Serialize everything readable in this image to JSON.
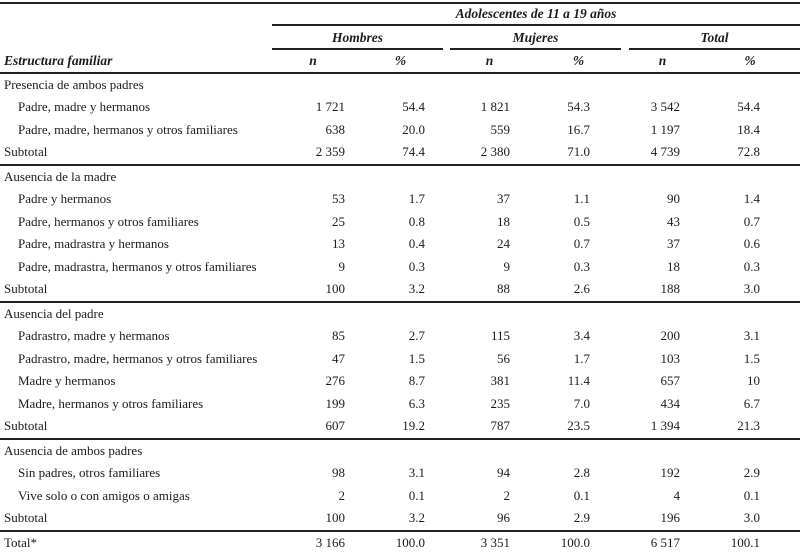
{
  "table": {
    "spanner": "Adolescentes de 11 a 19 años",
    "stub_header": "Estructura familiar",
    "groups": [
      {
        "label": "Hombres"
      },
      {
        "label": "Mujeres"
      },
      {
        "label": "Total"
      }
    ],
    "subcol_n": "n",
    "subcol_pct": "%",
    "column_keys": [
      "n-hombres",
      "pct-hombres",
      "n-mujeres",
      "pct-mujeres",
      "n-total",
      "pct-total"
    ],
    "sections": [
      {
        "header": "Presencia de ambos padres",
        "rows": [
          {
            "label": "Padre, madre y hermanos",
            "values": [
              "1 721",
              "54.4",
              "1 821",
              "54.3",
              "3 542",
              "54.4"
            ]
          },
          {
            "label": "Padre, madre, hermanos y otros familiares",
            "values": [
              "638",
              "20.0",
              "559",
              "16.7",
              "1 197",
              "18.4"
            ]
          }
        ],
        "subtotal": {
          "label": "Subtotal",
          "values": [
            "2 359",
            "74.4",
            "2 380",
            "71.0",
            "4 739",
            "72.8"
          ]
        }
      },
      {
        "header": "Ausencia de la madre",
        "rows": [
          {
            "label": "Padre y hermanos",
            "values": [
              "53",
              "1.7",
              "37",
              "1.1",
              "90",
              "1.4"
            ]
          },
          {
            "label": "Padre, hermanos y otros familiares",
            "values": [
              "25",
              "0.8",
              "18",
              "0.5",
              "43",
              "0.7"
            ]
          },
          {
            "label": "Padre, madrastra y hermanos",
            "values": [
              "13",
              "0.4",
              "24",
              "0.7",
              "37",
              "0.6"
            ]
          },
          {
            "label": "Padre, madrastra, hermanos y otros familiares",
            "values": [
              "9",
              "0.3",
              "9",
              "0.3",
              "18",
              "0.3"
            ]
          }
        ],
        "subtotal": {
          "label": "Subtotal",
          "values": [
            "100",
            "3.2",
            "88",
            "2.6",
            "188",
            "3.0"
          ]
        }
      },
      {
        "header": "Ausencia del padre",
        "rows": [
          {
            "label": "Padrastro, madre y hermanos",
            "values": [
              "85",
              "2.7",
              "115",
              "3.4",
              "200",
              "3.1"
            ]
          },
          {
            "label": "Padrastro, madre, hermanos y otros familiares",
            "values": [
              "47",
              "1.5",
              "56",
              "1.7",
              "103",
              "1.5"
            ]
          },
          {
            "label": "Madre y hermanos",
            "values": [
              "276",
              "8.7",
              "381",
              "11.4",
              "657",
              "10"
            ]
          },
          {
            "label": "Madre, hermanos y otros familiares",
            "values": [
              "199",
              "6.3",
              "235",
              "7.0",
              "434",
              "6.7"
            ]
          }
        ],
        "subtotal": {
          "label": "Subtotal",
          "values": [
            "607",
            "19.2",
            "787",
            "23.5",
            "1 394",
            "21.3"
          ]
        }
      },
      {
        "header": "Ausencia de ambos padres",
        "rows": [
          {
            "label": "Sin padres, otros familiares",
            "values": [
              "98",
              "3.1",
              "94",
              "2.8",
              "192",
              "2.9"
            ]
          },
          {
            "label": "Vive solo o con amigos o amigas",
            "values": [
              "2",
              "0.1",
              "2",
              "0.1",
              "4",
              "0.1"
            ]
          }
        ],
        "subtotal": {
          "label": "Subtotal",
          "values": [
            "100",
            "3.2",
            "96",
            "2.9",
            "196",
            "3.0"
          ]
        }
      }
    ],
    "total": {
      "label": "Total*",
      "values": [
        "3 166",
        "100.0",
        "3 351",
        "100.0",
        "6 517",
        "100.1"
      ]
    }
  },
  "colors": {
    "text": "#1c1c1c",
    "rule": "#222222",
    "bottom_bar": "#111111",
    "background": "#ffffff"
  }
}
